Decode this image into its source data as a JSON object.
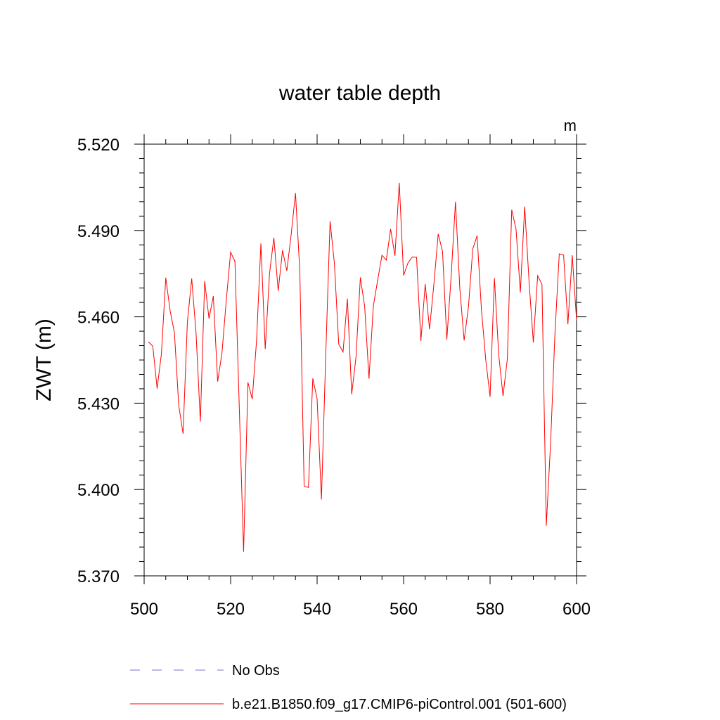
{
  "chart_data": {
    "type": "line",
    "title": "water table depth",
    "units": "m",
    "ylabel": "ZWT  (m)",
    "xlabel": "",
    "xlim": [
      500,
      600
    ],
    "ylim": [
      5.37,
      5.52
    ],
    "x_ticks": [
      "500",
      "520",
      "540",
      "560",
      "580",
      "600"
    ],
    "y_ticks": [
      "5.370",
      "5.400",
      "5.430",
      "5.460",
      "5.490",
      "5.520"
    ],
    "x_tick_values": [
      500,
      520,
      540,
      560,
      580,
      600
    ],
    "y_tick_values": [
      5.37,
      5.4,
      5.43,
      5.46,
      5.49,
      5.52
    ],
    "series": [
      {
        "name": "b.e21.B1850.f09_g17.CMIP6-piControl.001 (501-600)",
        "color": "#ff0000",
        "x": [
          501,
          502,
          503,
          504,
          505,
          506,
          507,
          508,
          509,
          510,
          511,
          512,
          513,
          514,
          515,
          516,
          517,
          518,
          519,
          520,
          521,
          522,
          523,
          524,
          525,
          526,
          527,
          528,
          529,
          530,
          531,
          532,
          533,
          534,
          535,
          536,
          537,
          538,
          539,
          540,
          541,
          542,
          543,
          544,
          545,
          546,
          547,
          548,
          549,
          550,
          551,
          552,
          553,
          554,
          555,
          556,
          557,
          558,
          559,
          560,
          561,
          562,
          563,
          564,
          565,
          566,
          567,
          568,
          569,
          570,
          571,
          572,
          573,
          574,
          575,
          576,
          577,
          578,
          579,
          580,
          581,
          582,
          583,
          584,
          585,
          586,
          587,
          588,
          589,
          590,
          591,
          592,
          593,
          594,
          595,
          596,
          597,
          598,
          599,
          600
        ],
        "y": [
          5.4513,
          5.4498,
          5.4351,
          5.4472,
          5.4736,
          5.4622,
          5.4545,
          5.4293,
          5.4194,
          5.4582,
          5.4733,
          5.4545,
          5.4236,
          5.4724,
          5.4594,
          5.4672,
          5.4375,
          5.4475,
          5.4658,
          5.4825,
          5.4792,
          5.4286,
          5.3784,
          5.4372,
          5.4314,
          5.4518,
          5.4855,
          5.4488,
          5.4751,
          5.4875,
          5.469,
          5.4831,
          5.476,
          5.4886,
          5.503,
          5.4759,
          5.4012,
          5.4007,
          5.4386,
          5.4315,
          5.3965,
          5.4469,
          5.4932,
          5.4785,
          5.4505,
          5.4478,
          5.4663,
          5.4331,
          5.4461,
          5.4737,
          5.4636,
          5.4385,
          5.4637,
          5.4727,
          5.4814,
          5.4797,
          5.4905,
          5.4812,
          5.5066,
          5.4744,
          5.4787,
          5.4808,
          5.4807,
          5.4516,
          5.4714,
          5.4557,
          5.4712,
          5.4888,
          5.4828,
          5.4521,
          5.4742,
          5.5,
          5.4698,
          5.4518,
          5.4635,
          5.4836,
          5.4882,
          5.4625,
          5.4451,
          5.4322,
          5.4735,
          5.4468,
          5.4325,
          5.4455,
          5.4972,
          5.4905,
          5.4685,
          5.4983,
          5.4726,
          5.4511,
          5.4743,
          5.4713,
          5.3874,
          5.4163,
          5.4541,
          5.4819,
          5.4815,
          5.4574,
          5.4814,
          5.4588
        ]
      }
    ],
    "legend": {
      "placement": "bottom",
      "entries": [
        {
          "label": "No Obs",
          "style": "dashed",
          "color": "#7b6fd6"
        },
        {
          "label": "b.e21.B1850.f09_g17.CMIP6-piControl.001 (501-600)",
          "style": "solid",
          "color": "#ff0000"
        }
      ]
    },
    "grid": false
  }
}
